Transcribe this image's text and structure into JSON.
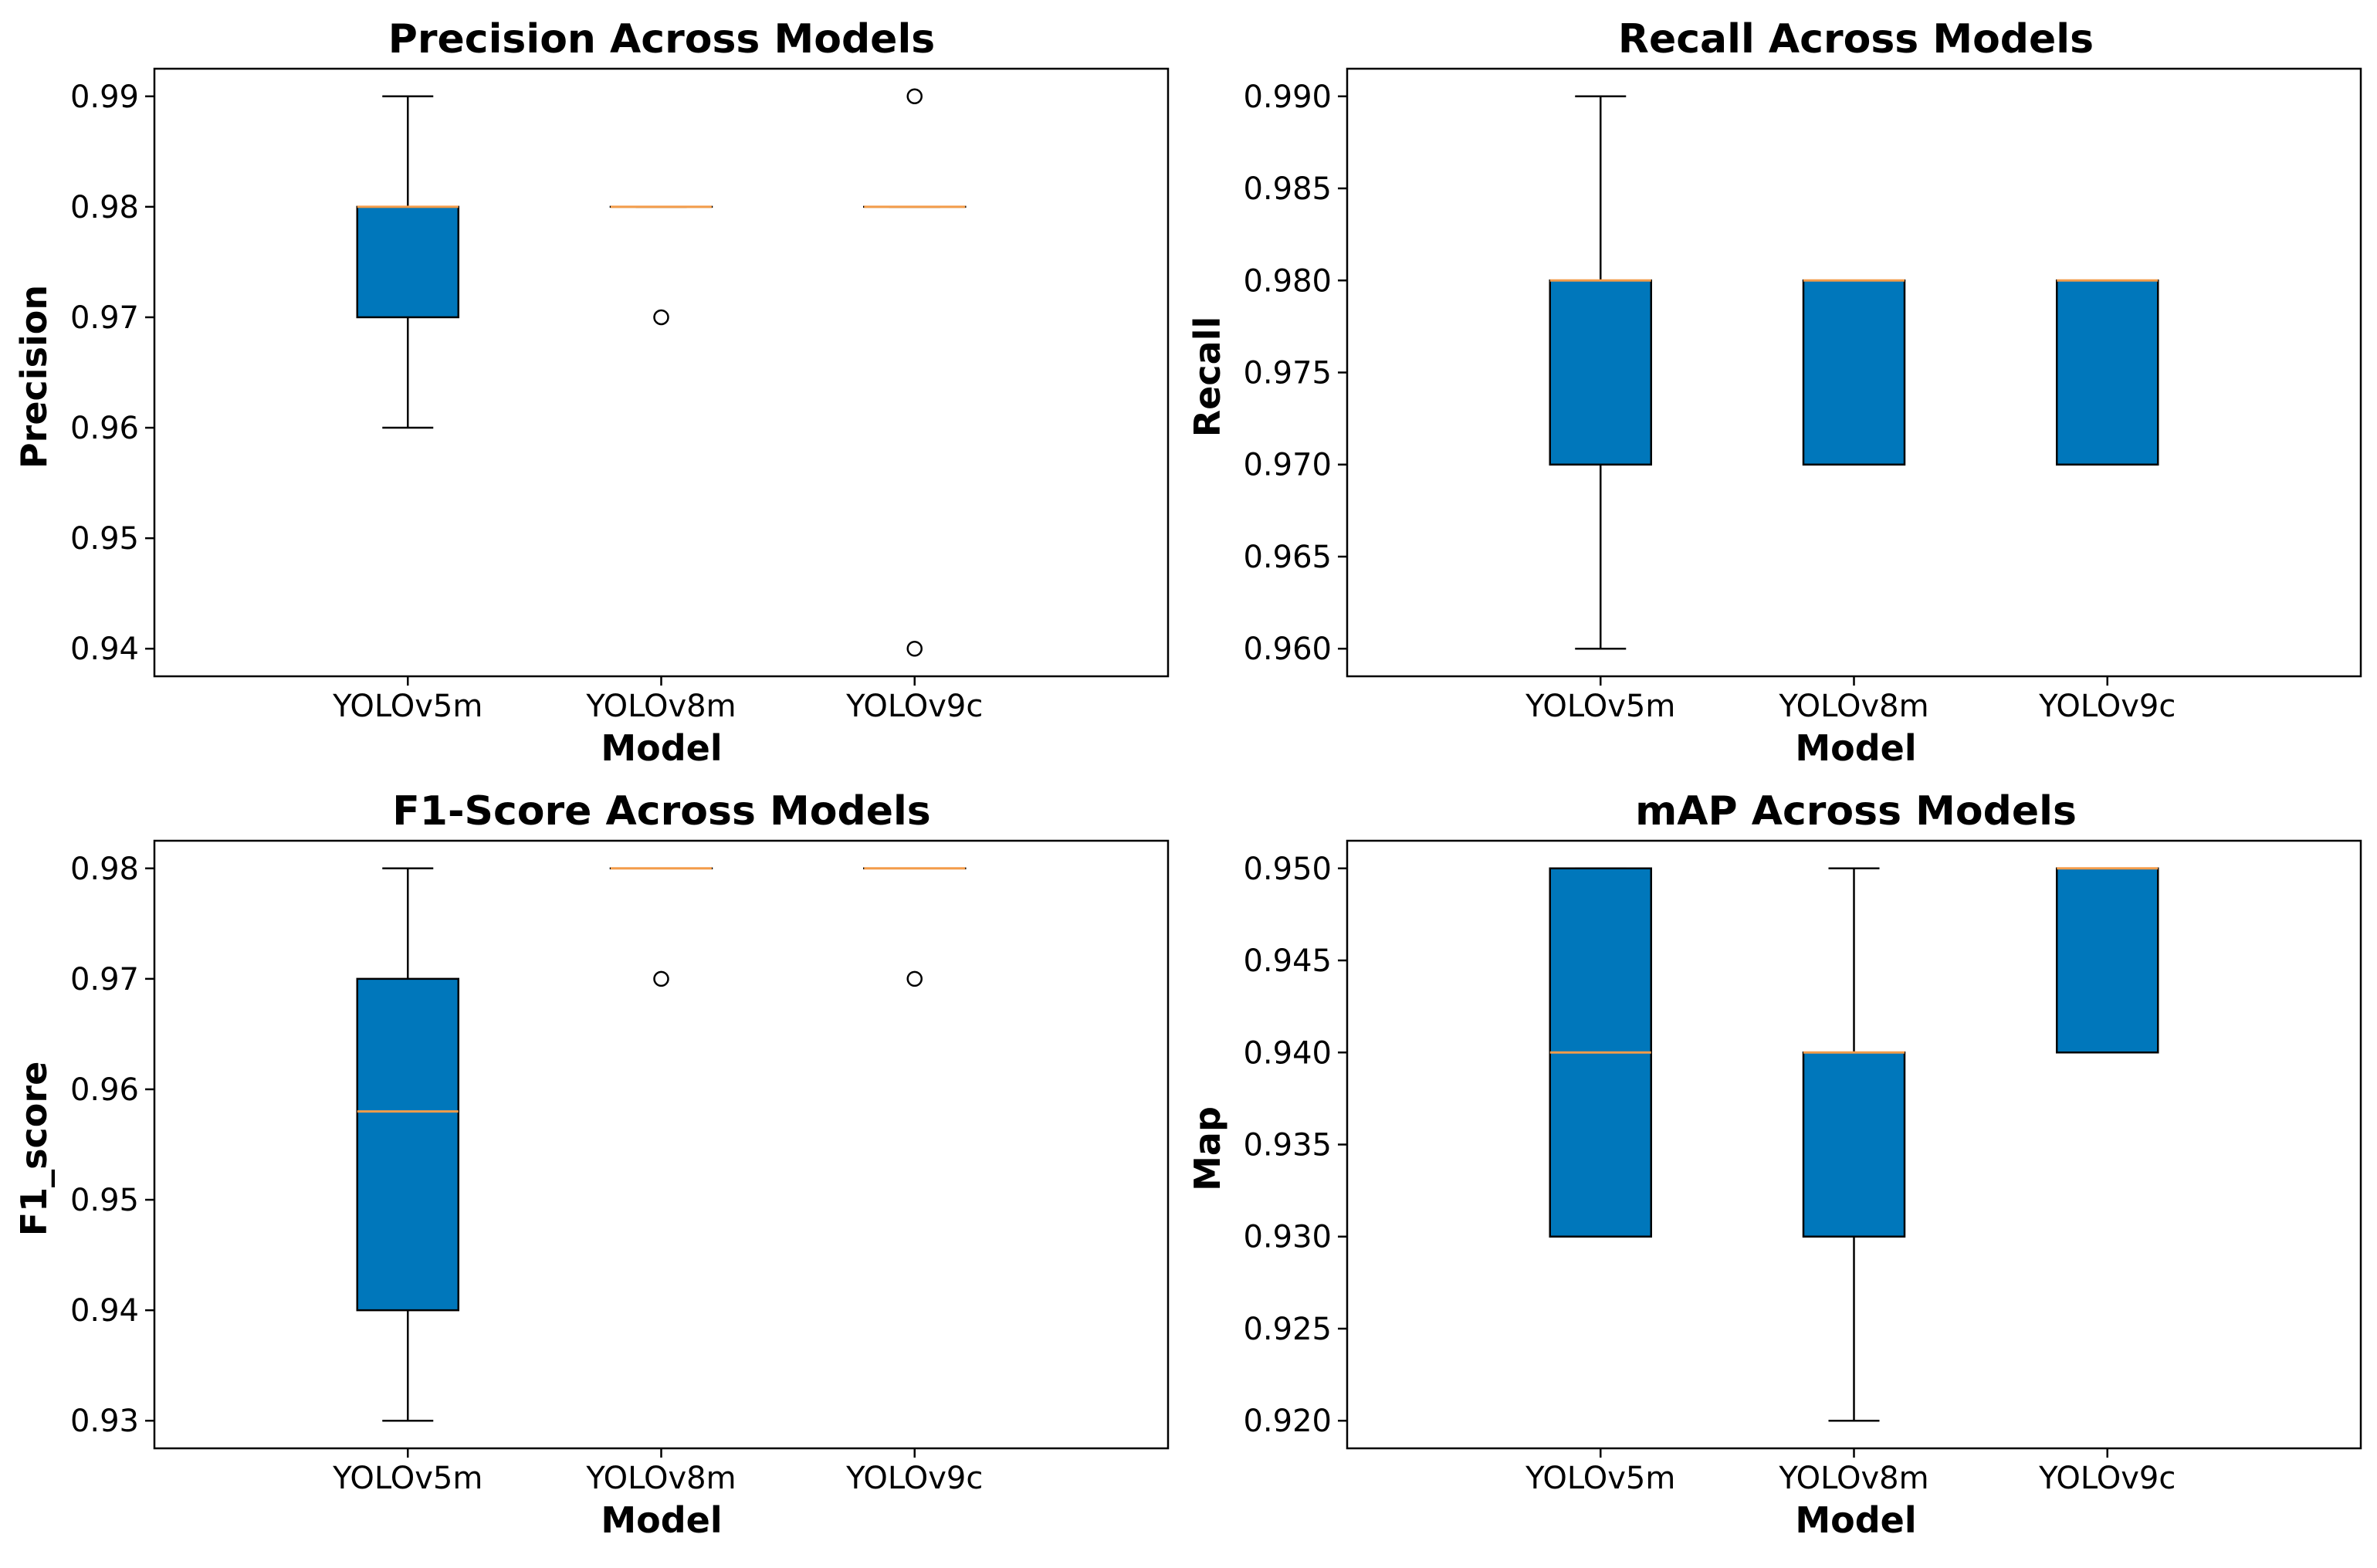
{
  "style": {
    "box_color": "#0077BB",
    "median_color": "#F39C4A",
    "line_color": "#000000"
  },
  "chart_data": [
    {
      "type": "box",
      "title": "Precision Across Models",
      "xlabel": "Model",
      "ylabel": "Precision",
      "categories": [
        "YOLOv5m",
        "YOLOv8m",
        "YOLOv9c"
      ],
      "ylim": [
        0.9375,
        0.9925
      ],
      "yticks": [
        0.94,
        0.95,
        0.96,
        0.97,
        0.98,
        0.99
      ],
      "ytick_labels": [
        "0.94",
        "0.95",
        "0.96",
        "0.97",
        "0.98",
        "0.99"
      ],
      "boxes": [
        {
          "whislo": 0.96,
          "q1": 0.97,
          "med": 0.98,
          "q3": 0.98,
          "whishi": 0.99,
          "fliers": []
        },
        {
          "whislo": 0.98,
          "q1": 0.98,
          "med": 0.98,
          "q3": 0.98,
          "whishi": 0.98,
          "fliers": [
            0.97
          ]
        },
        {
          "whislo": 0.98,
          "q1": 0.98,
          "med": 0.98,
          "q3": 0.98,
          "whishi": 0.98,
          "fliers": [
            0.99,
            0.94
          ]
        }
      ]
    },
    {
      "type": "box",
      "title": "Recall Across Models",
      "xlabel": "Model",
      "ylabel": "Recall",
      "categories": [
        "YOLOv5m",
        "YOLOv8m",
        "YOLOv9c"
      ],
      "ylim": [
        0.9585,
        0.9915
      ],
      "yticks": [
        0.96,
        0.965,
        0.97,
        0.975,
        0.98,
        0.985,
        0.99
      ],
      "ytick_labels": [
        "0.960",
        "0.965",
        "0.970",
        "0.975",
        "0.980",
        "0.985",
        "0.990"
      ],
      "boxes": [
        {
          "whislo": 0.96,
          "q1": 0.97,
          "med": 0.98,
          "q3": 0.98,
          "whishi": 0.99,
          "fliers": []
        },
        {
          "whislo": 0.97,
          "q1": 0.97,
          "med": 0.98,
          "q3": 0.98,
          "whishi": 0.98,
          "fliers": []
        },
        {
          "whislo": 0.97,
          "q1": 0.97,
          "med": 0.98,
          "q3": 0.98,
          "whishi": 0.98,
          "fliers": []
        }
      ]
    },
    {
      "type": "box",
      "title": "F1-Score Across Models",
      "xlabel": "Model",
      "ylabel": "F1_score",
      "categories": [
        "YOLOv5m",
        "YOLOv8m",
        "YOLOv9c"
      ],
      "ylim": [
        0.9275,
        0.9825
      ],
      "yticks": [
        0.93,
        0.94,
        0.95,
        0.96,
        0.97,
        0.98
      ],
      "ytick_labels": [
        "0.93",
        "0.94",
        "0.95",
        "0.96",
        "0.97",
        "0.98"
      ],
      "boxes": [
        {
          "whislo": 0.93,
          "q1": 0.94,
          "med": 0.958,
          "q3": 0.97,
          "whishi": 0.98,
          "fliers": []
        },
        {
          "whislo": 0.98,
          "q1": 0.98,
          "med": 0.98,
          "q3": 0.98,
          "whishi": 0.98,
          "fliers": [
            0.97
          ]
        },
        {
          "whislo": 0.98,
          "q1": 0.98,
          "med": 0.98,
          "q3": 0.98,
          "whishi": 0.98,
          "fliers": [
            0.97
          ]
        }
      ]
    },
    {
      "type": "box",
      "title": "mAP Across Models",
      "xlabel": "Model",
      "ylabel": "Map",
      "categories": [
        "YOLOv5m",
        "YOLOv8m",
        "YOLOv9c"
      ],
      "ylim": [
        0.9185,
        0.9515
      ],
      "yticks": [
        0.92,
        0.925,
        0.93,
        0.935,
        0.94,
        0.945,
        0.95
      ],
      "ytick_labels": [
        "0.920",
        "0.925",
        "0.930",
        "0.935",
        "0.940",
        "0.945",
        "0.950"
      ],
      "boxes": [
        {
          "whislo": 0.93,
          "q1": 0.93,
          "med": 0.94,
          "q3": 0.95,
          "whishi": 0.95,
          "fliers": []
        },
        {
          "whislo": 0.92,
          "q1": 0.93,
          "med": 0.94,
          "q3": 0.94,
          "whishi": 0.95,
          "fliers": []
        },
        {
          "whislo": 0.94,
          "q1": 0.94,
          "med": 0.95,
          "q3": 0.95,
          "whishi": 0.95,
          "fliers": []
        }
      ]
    }
  ]
}
